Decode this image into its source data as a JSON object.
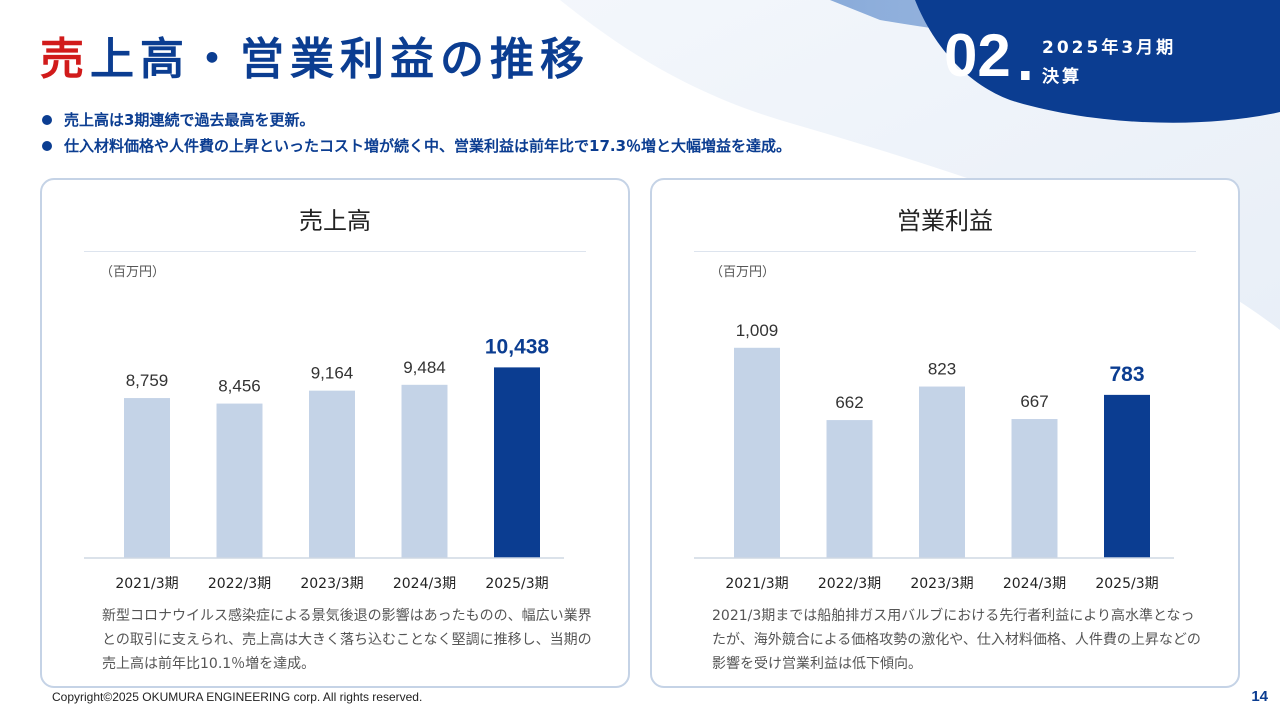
{
  "title": {
    "accent": "売",
    "rest": "上高・営業利益の推移"
  },
  "section": {
    "number": "02",
    "dot": ".",
    "line1": "2025年3月期",
    "line2": "決算"
  },
  "bullets": [
    "売上高は3期連続で過去最高を更新。",
    "仕入材料価格や人件費の上昇といったコスト増が続く中、営業利益は前年比で17.3％増と大幅増益を達成。"
  ],
  "colors": {
    "brand": "#0b3d91",
    "accent": "#d11b1b",
    "bar_past": "#c4d3e7",
    "bar_current": "#0b3d91"
  },
  "sales_panel": {
    "title": "売上高",
    "unit": "（百万円）",
    "note": "新型コロナウイルス感染症による景気後退の影響はあったものの、幅広い業界との取引に支えられ、売上高は大きく落ち込むことなく堅調に推移し、当期の売上高は前年比10.1％増を達成。"
  },
  "profit_panel": {
    "title": "営業利益",
    "unit": "（百万円）",
    "note": "2021/3期までは船舶排ガス用バルブにおける先行者利益により高水準となったが、海外競合による価格攻勢の激化や、仕入材料価格、人件費の上昇などの影響を受け営業利益は低下傾向。"
  },
  "chart_data": [
    {
      "type": "bar",
      "title": "売上高",
      "ylabel": "（百万円）",
      "categories": [
        "2021/3期",
        "2022/3期",
        "2023/3期",
        "2024/3期",
        "2025/3期"
      ],
      "values": [
        8759,
        8456,
        9164,
        9484,
        10438
      ],
      "labels": [
        "8,759",
        "8,456",
        "9,164",
        "9,484",
        "10,438"
      ],
      "highlight_index": 4,
      "ylim": [
        0,
        11500
      ]
    },
    {
      "type": "bar",
      "title": "営業利益",
      "ylabel": "（百万円）",
      "categories": [
        "2021/3期",
        "2022/3期",
        "2023/3期",
        "2024/3期",
        "2025/3期"
      ],
      "values": [
        1009,
        662,
        823,
        667,
        783
      ],
      "labels": [
        "1,009",
        "662",
        "823",
        "667",
        "783"
      ],
      "highlight_index": 4,
      "ylim": [
        0,
        1008
      ]
    }
  ],
  "footer": {
    "copyright": "Copyright©2025 OKUMURA ENGINEERING corp. All rights reserved.",
    "page": "14"
  }
}
